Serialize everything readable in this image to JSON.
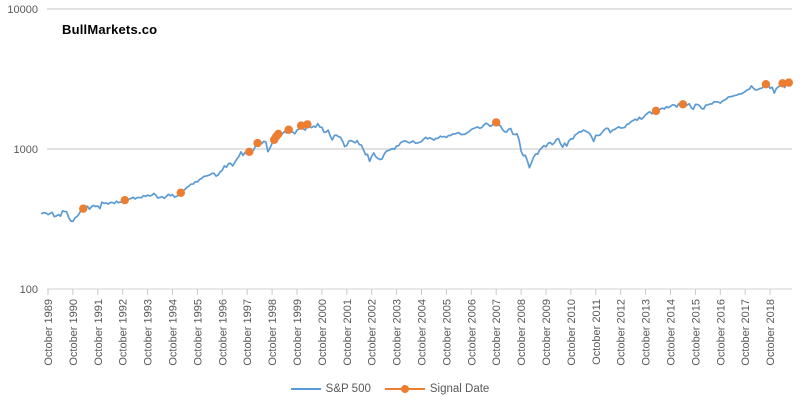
{
  "title": "BullMarkets.co",
  "colors": {
    "sp500_line": "#5B9BD5",
    "signal_marker": "#ED7D31",
    "gridline": "#D9D9D9",
    "axis_line": "#D9D9D9",
    "tick_mark": "#C9C9C9",
    "axis_label": "#595959",
    "title_text": "#000000",
    "background": "#FFFFFF"
  },
  "legend": {
    "sp500_label": "S&P 500",
    "signal_label": "Signal Date"
  },
  "chart_data": {
    "type": "line",
    "title": "BullMarkets.co",
    "xlabel": "",
    "ylabel": "",
    "y_axis": {
      "scale": "log",
      "range": [
        100,
        10000
      ],
      "ticks": [
        100,
        1000,
        10000
      ],
      "tick_labels": [
        "100",
        "1000",
        "10000"
      ]
    },
    "x_axis": {
      "base_month": "1989-10",
      "tick_interval": "1 year",
      "tick_labels": [
        "October 1989",
        "October 1990",
        "October 1991",
        "October 1992",
        "October 1993",
        "October 1994",
        "October 1995",
        "October 1996",
        "October 1997",
        "October 1998",
        "October 1999",
        "October 2000",
        "October 2001",
        "October 2002",
        "October 2003",
        "October 2004",
        "October 2005",
        "October 2006",
        "October 2007",
        "October 2008",
        "October 2009",
        "October 2010",
        "October 2011",
        "October 2012",
        "October 2013",
        "October 2014",
        "October 2015",
        "October 2016",
        "October 2017",
        "October 2018"
      ]
    },
    "grid": "horizontal-only",
    "legend_position": "bottom",
    "legend_entries": [
      "S&P 500",
      "Signal Date"
    ],
    "series": [
      {
        "name": "S&P 500",
        "type": "line",
        "color": "#5B9BD5",
        "start": "1989-07",
        "interval": "monthly",
        "values": [
          346,
          351,
          349,
          340,
          346,
          353,
          329,
          332,
          340,
          331,
          361,
          358,
          356,
          323,
          306,
          304,
          322,
          330,
          344,
          367,
          375,
          375,
          390,
          371,
          388,
          395,
          388,
          392,
          375,
          417,
          409,
          412,
          404,
          415,
          415,
          408,
          424,
          414,
          418,
          419,
          431,
          436,
          439,
          443,
          452,
          440,
          450,
          451,
          448,
          464,
          459,
          468,
          462,
          466,
          482,
          467,
          446,
          451,
          457,
          444,
          458,
          475,
          463,
          472,
          454,
          459,
          470,
          487,
          501,
          515,
          533,
          545,
          562,
          562,
          584,
          582,
          605,
          616,
          636,
          640,
          646,
          654,
          669,
          671,
          640,
          652,
          687,
          705,
          757,
          741,
          786,
          791,
          757,
          801,
          848,
          885,
          954,
          899,
          947,
          915,
          955,
          970,
          980,
          1049,
          1102,
          1112,
          1091,
          1134,
          1121,
          957,
          1017,
          1099,
          1164,
          1229,
          1280,
          1238,
          1286,
          1335,
          1302,
          1373,
          1329,
          1320,
          1283,
          1363,
          1389,
          1469,
          1394,
          1366,
          1499,
          1452,
          1421,
          1455,
          1431,
          1518,
          1436,
          1429,
          1315,
          1320,
          1366,
          1240,
          1160,
          1249,
          1256,
          1224,
          1211,
          1134,
          1041,
          1060,
          1139,
          1148,
          1130,
          1107,
          1147,
          1077,
          1067,
          990,
          912,
          916,
          815,
          886,
          936,
          880,
          856,
          841,
          848,
          917,
          964,
          975,
          990,
          1008,
          996,
          1051,
          1058,
          1112,
          1131,
          1145,
          1126,
          1107,
          1121,
          1141,
          1102,
          1104,
          1115,
          1130,
          1174,
          1212,
          1181,
          1204,
          1181,
          1157,
          1192,
          1191,
          1234,
          1220,
          1229,
          1207,
          1249,
          1248,
          1280,
          1281,
          1295,
          1311,
          1270,
          1270,
          1277,
          1304,
          1336,
          1378,
          1401,
          1418,
          1438,
          1407,
          1421,
          1482,
          1531,
          1503,
          1455,
          1474,
          1527,
          1549,
          1481,
          1468,
          1379,
          1331,
          1323,
          1386,
          1400,
          1280,
          1267,
          1283,
          1166,
          969,
          896,
          903,
          826,
          735,
          798,
          873,
          919,
          919,
          987,
          1021,
          1057,
          1036,
          1096,
          1115,
          1074,
          1104,
          1169,
          1187,
          1089,
          1031,
          1102,
          1049,
          1141,
          1183,
          1181,
          1258,
          1286,
          1327,
          1326,
          1364,
          1345,
          1321,
          1292,
          1219,
          1131,
          1253,
          1247,
          1258,
          1312,
          1366,
          1408,
          1398,
          1310,
          1362,
          1379,
          1407,
          1441,
          1412,
          1416,
          1426,
          1498,
          1515,
          1569,
          1598,
          1631,
          1606,
          1686,
          1633,
          1682,
          1757,
          1806,
          1848,
          1783,
          1859,
          1872,
          1884,
          1924,
          1960,
          1931,
          2003,
          1972,
          2018,
          2068,
          2059,
          1995,
          2105,
          2068,
          2086,
          2107,
          2063,
          2104,
          1972,
          1920,
          2079,
          2080,
          2044,
          1940,
          1932,
          2060,
          2065,
          2097,
          2099,
          2174,
          2171,
          2168,
          2126,
          2199,
          2239,
          2279,
          2364,
          2363,
          2384,
          2412,
          2423,
          2470,
          2472,
          2519,
          2575,
          2648,
          2674,
          2824,
          2714,
          2641,
          2648,
          2705,
          2718,
          2816,
          2902,
          2914,
          2712,
          2760,
          2507,
          2704,
          2784,
          2834,
          2946,
          2752,
          2942,
          2980
        ]
      },
      {
        "name": "Signal Date",
        "type": "scatter",
        "color": "#ED7D31",
        "points": [
          {
            "date": "1991-03",
            "value": 375
          },
          {
            "date": "1992-11",
            "value": 431
          },
          {
            "date": "1995-02",
            "value": 487
          },
          {
            "date": "1997-11",
            "value": 955
          },
          {
            "date": "1998-03",
            "value": 1102
          },
          {
            "date": "1998-11",
            "value": 1164
          },
          {
            "date": "1998-12",
            "value": 1229
          },
          {
            "date": "1999-01",
            "value": 1280
          },
          {
            "date": "1999-06",
            "value": 1373
          },
          {
            "date": "1999-12",
            "value": 1469
          },
          {
            "date": "2000-03",
            "value": 1499
          },
          {
            "date": "2007-10",
            "value": 1549
          },
          {
            "date": "2014-03",
            "value": 1872
          },
          {
            "date": "2015-04",
            "value": 2086
          },
          {
            "date": "2018-08",
            "value": 2902
          },
          {
            "date": "2019-04",
            "value": 2946
          },
          {
            "date": "2019-07",
            "value": 2980
          }
        ]
      }
    ]
  }
}
